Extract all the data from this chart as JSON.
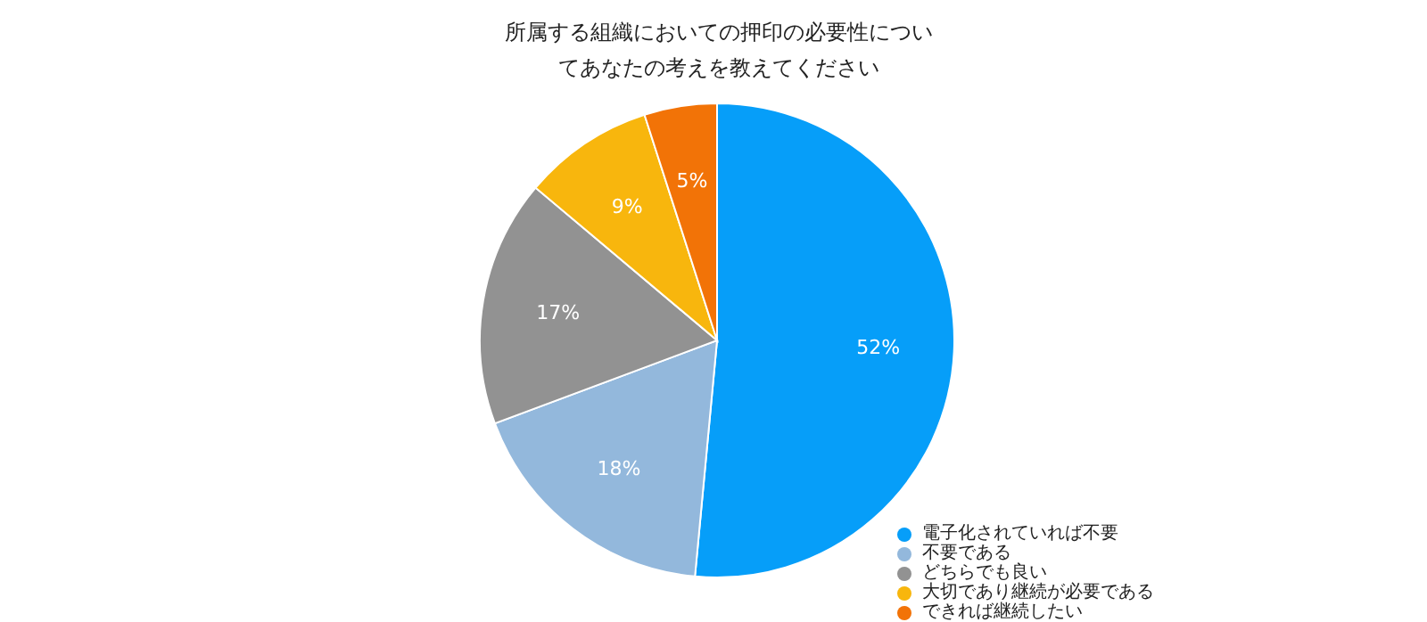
{
  "chart_data": {
    "type": "pie",
    "title": "所属する組織においての押印の必要性についてあなたの考えを教えてください",
    "categories": [
      "電子化されていれば不要",
      "不要である",
      "どちらでも良い",
      "大切であり継続が必要である",
      "できれば継続したい"
    ],
    "values": [
      52,
      18,
      17,
      9,
      5
    ],
    "colors": [
      "#069ef9",
      "#93b8dc",
      "#929292",
      "#f8b60d",
      "#f27307"
    ],
    "value_labels": [
      "52%",
      "18%",
      "17%",
      "9%",
      "5%"
    ],
    "legend": "bottom right"
  }
}
